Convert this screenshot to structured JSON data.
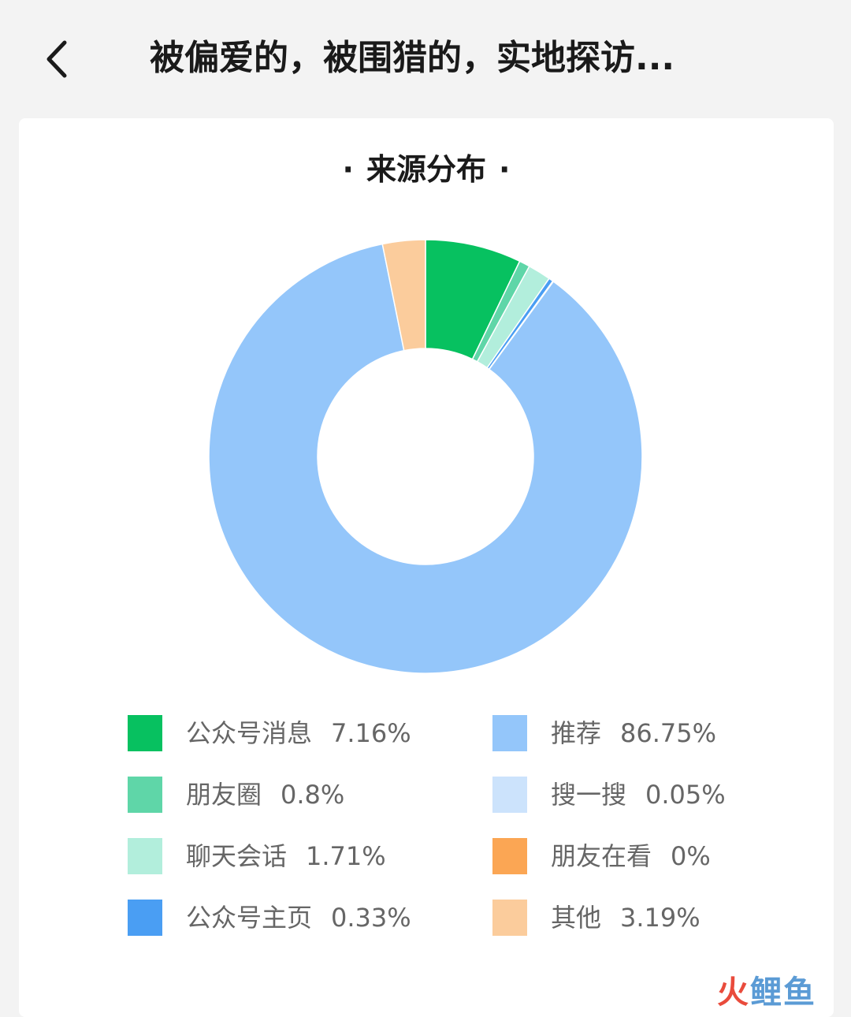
{
  "header": {
    "title": "被偏爱的，被围猎的，实地探访...",
    "back_icon": "chevron-left-icon"
  },
  "chart_data": {
    "type": "pie",
    "title": "来源分布",
    "donut": true,
    "legend_position": "bottom",
    "series": [
      {
        "name": "公众号消息",
        "value": 7.16,
        "label": "7.16%",
        "color": "#07c160"
      },
      {
        "name": "推荐",
        "value": 86.75,
        "label": "86.75%",
        "color": "#94c6fa"
      },
      {
        "name": "朋友圈",
        "value": 0.8,
        "label": "0.8%",
        "color": "#5fd6a8"
      },
      {
        "name": "搜一搜",
        "value": 0.05,
        "label": "0.05%",
        "color": "#cce3fc"
      },
      {
        "name": "聊天会话",
        "value": 1.71,
        "label": "1.71%",
        "color": "#b2eedc"
      },
      {
        "name": "朋友在看",
        "value": 0,
        "label": "0%",
        "color": "#fba654"
      },
      {
        "name": "公众号主页",
        "value": 0.33,
        "label": "0.33%",
        "color": "#4a9ef3"
      },
      {
        "name": "其他",
        "value": 3.19,
        "label": "3.19%",
        "color": "#fbcc9c"
      }
    ],
    "slice_order": [
      "公众号消息",
      "朋友圈",
      "聊天会话",
      "公众号主页",
      "搜一搜",
      "推荐",
      "朋友在看",
      "其他"
    ]
  },
  "watermark": {
    "part1": "火",
    "part2": "鲤鱼"
  }
}
